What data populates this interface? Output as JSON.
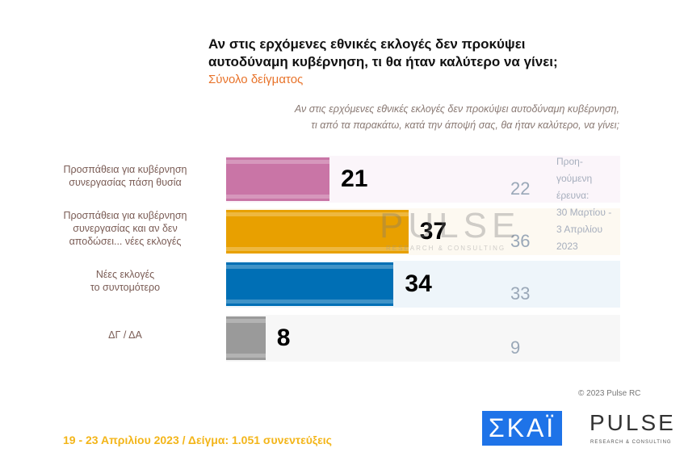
{
  "title_lines": [
    "Αν στις ερχόμενες εθνικές εκλογές δεν προκύψει",
    "αυτοδύναμη κυβέρνηση, τι θα ήταν καλύτερο να γίνει;"
  ],
  "subtitle": "Σύνολο δείγματος",
  "question_lines": [
    "Αν στις ερχόμενες εθνικές εκλογές δεν προκύψει αυτοδύναμη κυβέρνηση,",
    "τι από τα παρακάτω, κατά την άποψή σας, θα ήταν καλύτερο, να γίνει;"
  ],
  "chart_data": {
    "type": "bar",
    "orientation": "horizontal",
    "categories": [
      [
        "Προσπάθεια για κυβέρνηση",
        "συνεργασίας πάση θυσία"
      ],
      [
        "Προσπάθεια για κυβέρνηση",
        "συνεργασίας και αν δεν",
        "αποδώσει... νέες εκλογές"
      ],
      [
        "Νέες εκλογές",
        "το συντομότερο"
      ],
      [
        "ΔΓ / ΔΑ"
      ]
    ],
    "values": [
      21,
      37,
      34,
      8
    ],
    "previous_values": [
      22,
      36,
      33,
      9
    ],
    "colors": [
      "#c975a6",
      "#e8a000",
      "#006fb5",
      "#9a9a9a"
    ],
    "row_backgrounds": [
      "#fbf5fa",
      "#fdf9f1",
      "#eef5fa",
      "#f7f7f7"
    ],
    "previous_label_lines": [
      "Προη-",
      "γούμενη",
      "έρευνα:",
      "30 Μαρτίου -",
      "3 Απριλίου",
      "2023"
    ],
    "xlim": [
      0,
      80
    ]
  },
  "watermark": {
    "name": "PULSE",
    "sub": "RESEARCH & CONSULTING"
  },
  "copyright": "© 2023 Pulse RC",
  "footer": "19 - 23  Απριλίου  2023  /  Δείγμα:  1.051 συνεντεύξεις",
  "logos": {
    "skai": "ΣΚΑΪ",
    "pulse": "PULSE",
    "pulse_sub": "RESEARCH & CONSULTING"
  }
}
